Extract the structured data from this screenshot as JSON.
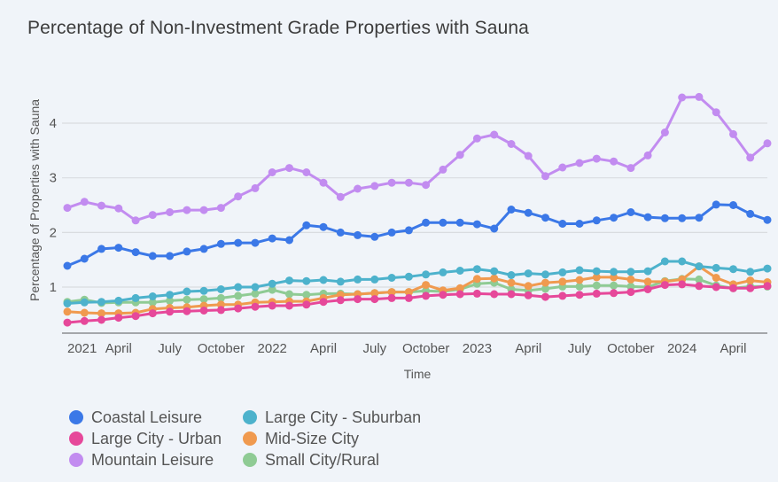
{
  "chart_data": {
    "type": "line",
    "title": "Percentage of Non-Investment Grade Properties with Sauna",
    "xlabel": "Time",
    "ylabel": "Percentage of Properties with Sauna",
    "x_start": "2021-01",
    "x_frequency": "monthly",
    "x_count": 42,
    "x_tick_labels": [
      "2021",
      "April",
      "July",
      "October",
      "2022",
      "April",
      "July",
      "October",
      "2023",
      "April",
      "July",
      "October",
      "2024",
      "April"
    ],
    "x_tick_month_index": [
      0,
      3,
      6,
      9,
      12,
      15,
      18,
      21,
      24,
      27,
      30,
      33,
      36,
      39
    ],
    "y_ticks": [
      1,
      2,
      3,
      4
    ],
    "ylim": [
      0.16,
      4.7
    ],
    "grid": true,
    "legend_position": "bottom-left",
    "series": [
      {
        "name": "Coastal Leisure",
        "color": "#3b78e7",
        "values": [
          1.39,
          1.52,
          1.7,
          1.72,
          1.64,
          1.57,
          1.57,
          1.65,
          1.7,
          1.79,
          1.81,
          1.81,
          1.89,
          1.86,
          2.13,
          2.1,
          2.0,
          1.95,
          1.92,
          2.0,
          2.04,
          2.18,
          2.18,
          2.18,
          2.15,
          2.07,
          2.42,
          2.36,
          2.27,
          2.16,
          2.16,
          2.22,
          2.27,
          2.37,
          2.28,
          2.26,
          2.26,
          2.27,
          2.51,
          2.5,
          2.34,
          2.23
        ]
      },
      {
        "name": "Large City - Suburban",
        "color": "#4db2cc",
        "values": [
          0.7,
          0.72,
          0.73,
          0.75,
          0.8,
          0.83,
          0.86,
          0.92,
          0.93,
          0.96,
          1.0,
          1.0,
          1.06,
          1.12,
          1.11,
          1.13,
          1.1,
          1.14,
          1.14,
          1.17,
          1.19,
          1.23,
          1.27,
          1.3,
          1.33,
          1.29,
          1.22,
          1.25,
          1.23,
          1.27,
          1.31,
          1.29,
          1.28,
          1.28,
          1.29,
          1.47,
          1.47,
          1.38,
          1.35,
          1.33,
          1.28,
          1.34
        ]
      },
      {
        "name": "Large City - Urban",
        "color": "#e6489a",
        "values": [
          0.35,
          0.38,
          0.4,
          0.44,
          0.47,
          0.52,
          0.55,
          0.56,
          0.57,
          0.58,
          0.61,
          0.64,
          0.66,
          0.66,
          0.68,
          0.73,
          0.76,
          0.78,
          0.78,
          0.8,
          0.8,
          0.84,
          0.86,
          0.87,
          0.88,
          0.87,
          0.87,
          0.85,
          0.82,
          0.84,
          0.86,
          0.88,
          0.89,
          0.91,
          0.96,
          1.04,
          1.05,
          1.02,
          1.0,
          0.98,
          0.98,
          1.02
        ]
      },
      {
        "name": "Mid-Size City",
        "color": "#f09a4f",
        "values": [
          0.55,
          0.53,
          0.52,
          0.52,
          0.53,
          0.6,
          0.62,
          0.63,
          0.66,
          0.68,
          0.68,
          0.72,
          0.73,
          0.74,
          0.74,
          0.8,
          0.86,
          0.87,
          0.89,
          0.91,
          0.91,
          1.04,
          0.94,
          0.98,
          1.15,
          1.16,
          1.08,
          1.02,
          1.08,
          1.1,
          1.13,
          1.18,
          1.18,
          1.14,
          1.1,
          1.1,
          1.14,
          1.38,
          1.17,
          1.05,
          1.12,
          1.09
        ]
      },
      {
        "name": "Mountain Leisure",
        "color": "#c28cf0",
        "values": [
          2.45,
          2.56,
          2.49,
          2.44,
          2.22,
          2.32,
          2.37,
          2.41,
          2.41,
          2.45,
          2.66,
          2.81,
          3.1,
          3.18,
          3.1,
          2.91,
          2.65,
          2.8,
          2.85,
          2.91,
          2.91,
          2.87,
          3.15,
          3.42,
          3.72,
          3.79,
          3.62,
          3.4,
          3.03,
          3.19,
          3.27,
          3.35,
          3.3,
          3.18,
          3.41,
          3.83,
          4.47,
          4.48,
          4.2,
          3.8,
          3.37,
          3.63
        ]
      },
      {
        "name": "Small City/Rural",
        "color": "#8fcb94",
        "values": [
          0.73,
          0.77,
          0.71,
          0.72,
          0.72,
          0.72,
          0.75,
          0.77,
          0.78,
          0.8,
          0.84,
          0.88,
          0.95,
          0.87,
          0.86,
          0.88,
          0.88,
          0.87,
          0.89,
          0.91,
          0.91,
          0.93,
          0.92,
          0.96,
          1.06,
          1.08,
          0.96,
          0.94,
          0.97,
          1.01,
          1.01,
          1.03,
          1.03,
          1.01,
          1.0,
          1.11,
          1.15,
          1.14,
          1.03,
          0.98,
          1.01,
          1.01
        ]
      }
    ]
  }
}
